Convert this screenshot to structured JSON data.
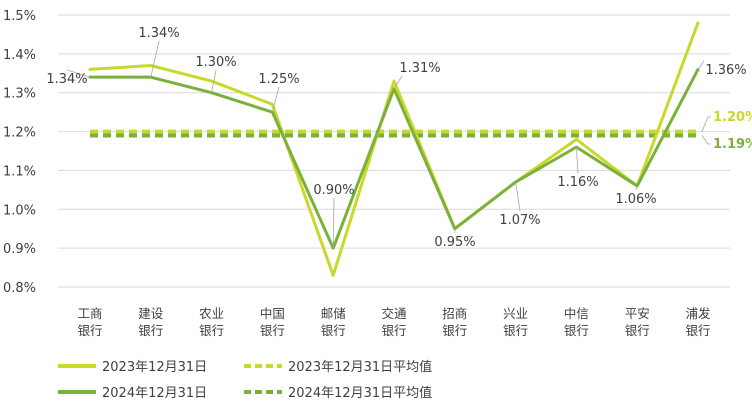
{
  "chart_data": {
    "type": "line",
    "categories": [
      [
        "工商",
        "银行"
      ],
      [
        "建设",
        "银行"
      ],
      [
        "农业",
        "银行"
      ],
      [
        "中国",
        "银行"
      ],
      [
        "邮储",
        "银行"
      ],
      [
        "交通",
        "银行"
      ],
      [
        "招商",
        "银行"
      ],
      [
        "兴业",
        "银行"
      ],
      [
        "中信",
        "银行"
      ],
      [
        "平安",
        "银行"
      ],
      [
        "浦发",
        "银行"
      ]
    ],
    "ylim": [
      0.8,
      1.5
    ],
    "yticks": [
      0.8,
      0.9,
      1.0,
      1.1,
      1.2,
      1.3,
      1.4,
      1.5
    ],
    "ytick_labels": [
      "0.8%",
      "0.9%",
      "1.0%",
      "1.1%",
      "1.2%",
      "1.3%",
      "1.4%",
      "1.5%"
    ],
    "series": [
      {
        "name": "2023年12月31日",
        "color": "#c8d92a",
        "style": "solid",
        "values": [
          1.36,
          1.37,
          1.33,
          1.27,
          0.83,
          1.33,
          0.95,
          1.07,
          1.18,
          1.06,
          1.48
        ]
      },
      {
        "name": "2024年12月31日",
        "color": "#7bb13a",
        "style": "solid",
        "values": [
          1.34,
          1.34,
          1.3,
          1.25,
          0.9,
          1.31,
          0.95,
          1.07,
          1.16,
          1.06,
          1.36
        ]
      },
      {
        "name": "2023年12月31日平均值",
        "color": "#c8d92a",
        "style": "dashed",
        "value": 1.2,
        "label": "1.20%"
      },
      {
        "name": "2024年12月31日平均值",
        "color": "#7bb13a",
        "style": "dashed",
        "value": 1.19,
        "label": "1.19%"
      }
    ],
    "data_labels": [
      "1.34%",
      "1.34%",
      "1.30%",
      "1.25%",
      "0.90%",
      "1.31%",
      "0.95%",
      "1.07%",
      "1.16%",
      "1.06%",
      "1.36%"
    ],
    "grid": "horizontal",
    "legend_position": "bottom"
  }
}
